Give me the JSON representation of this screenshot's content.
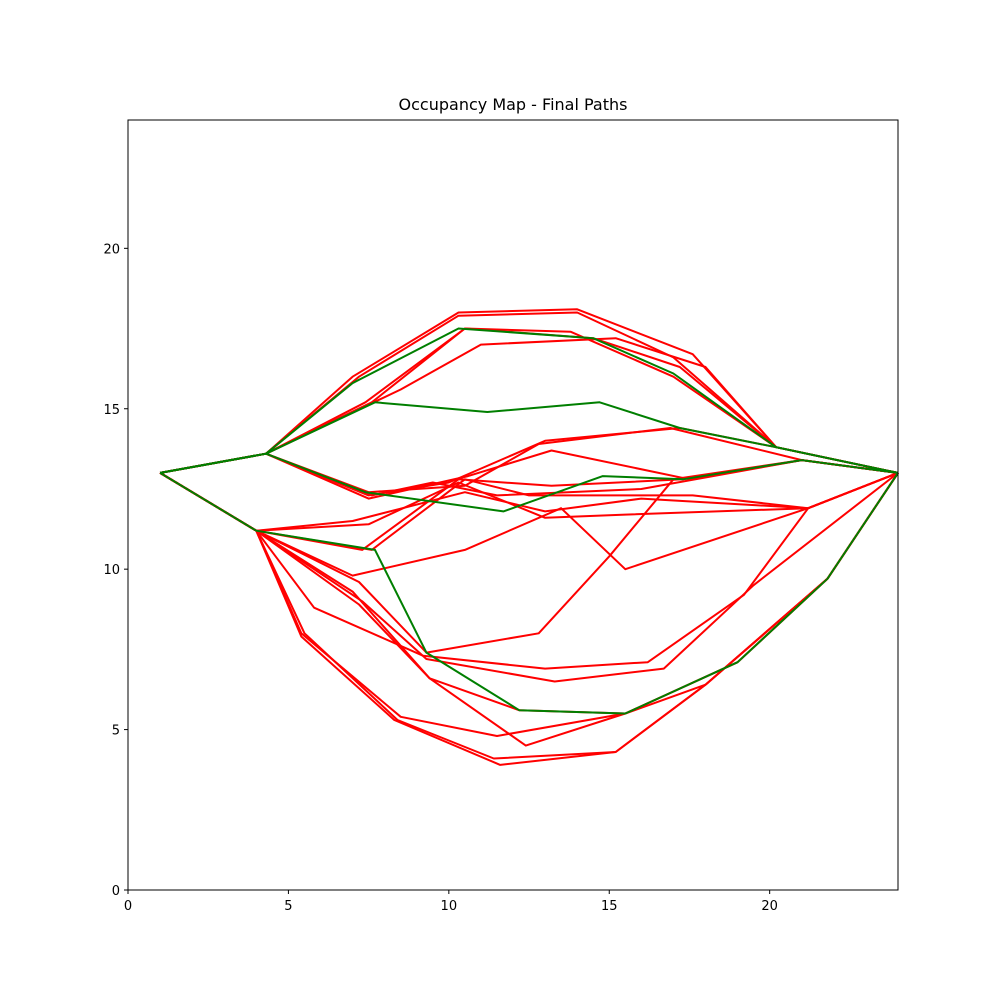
{
  "chart_data": {
    "type": "line",
    "title": "Occupancy Map - Final Paths",
    "xlabel": "",
    "ylabel": "",
    "xlim": [
      0,
      24
    ],
    "ylim": [
      0,
      24
    ],
    "x_ticks": [
      0,
      5,
      10,
      15,
      20
    ],
    "y_ticks": [
      0,
      5,
      10,
      15,
      20
    ],
    "grid": false,
    "colors": {
      "red": "#ff0000",
      "green": "#007f00"
    },
    "series": [
      {
        "color": "red",
        "points": [
          [
            1,
            13
          ],
          [
            4.3,
            13.6
          ],
          [
            7,
            16
          ],
          [
            10.3,
            18
          ],
          [
            14,
            18.1
          ],
          [
            17.6,
            16.7
          ],
          [
            20.2,
            13.8
          ],
          [
            24,
            13
          ]
        ]
      },
      {
        "color": "red",
        "points": [
          [
            1,
            13
          ],
          [
            4.3,
            13.6
          ],
          [
            7.2,
            16
          ],
          [
            10.3,
            17.9
          ],
          [
            14,
            18
          ],
          [
            17,
            16.6
          ],
          [
            20.2,
            13.8
          ],
          [
            24,
            13
          ]
        ]
      },
      {
        "color": "red",
        "points": [
          [
            1,
            13
          ],
          [
            4.3,
            13.6
          ],
          [
            7.4,
            15.2
          ],
          [
            10.5,
            17.5
          ],
          [
            14.5,
            17.2
          ],
          [
            17.2,
            16.3
          ],
          [
            20.2,
            13.8
          ],
          [
            24,
            13
          ]
        ]
      },
      {
        "color": "red",
        "points": [
          [
            1,
            13
          ],
          [
            4.3,
            13.6
          ],
          [
            8.5,
            15.6
          ],
          [
            11,
            17
          ],
          [
            15.2,
            17.2
          ],
          [
            18,
            16.3
          ],
          [
            20.2,
            13.8
          ],
          [
            24,
            13
          ]
        ]
      },
      {
        "color": "red",
        "points": [
          [
            1,
            13
          ],
          [
            4.3,
            13.6
          ],
          [
            7.6,
            15.2
          ],
          [
            10.5,
            17.5
          ],
          [
            13.8,
            17.4
          ],
          [
            17,
            16
          ],
          [
            20.2,
            13.8
          ],
          [
            24,
            13
          ]
        ]
      },
      {
        "color": "red",
        "points": [
          [
            1,
            13
          ],
          [
            4.3,
            13.6
          ],
          [
            7.5,
            12.3
          ],
          [
            10,
            12.7
          ],
          [
            13,
            14
          ],
          [
            17.2,
            14.4
          ],
          [
            20.2,
            13.8
          ],
          [
            24,
            13
          ]
        ]
      },
      {
        "color": "red",
        "points": [
          [
            1,
            13
          ],
          [
            4.3,
            13.6
          ],
          [
            7.5,
            12.4
          ],
          [
            10.5,
            12.6
          ],
          [
            12.8,
            13.9
          ],
          [
            16.9,
            14.4
          ],
          [
            21,
            13.4
          ],
          [
            24,
            13
          ]
        ]
      },
      {
        "color": "red",
        "points": [
          [
            1,
            13
          ],
          [
            4.3,
            13.6
          ],
          [
            7.5,
            12.2
          ],
          [
            10.6,
            12.9
          ],
          [
            13.2,
            13.7
          ],
          [
            17.5,
            12.8
          ],
          [
            21,
            13.4
          ],
          [
            24,
            13
          ]
        ]
      },
      {
        "color": "red",
        "points": [
          [
            1,
            13
          ],
          [
            4.3,
            13.6
          ],
          [
            7.6,
            12.3
          ],
          [
            9.5,
            12.7
          ],
          [
            11.5,
            12.3
          ],
          [
            16,
            12.5
          ],
          [
            21,
            13.4
          ],
          [
            24,
            13
          ]
        ]
      },
      {
        "color": "red",
        "points": [
          [
            1,
            13
          ],
          [
            4,
            11.2
          ],
          [
            7.5,
            11.4
          ],
          [
            10.3,
            12.7
          ],
          [
            13,
            11.6
          ],
          [
            15.5,
            11.7
          ],
          [
            21.2,
            11.9
          ],
          [
            24,
            13
          ]
        ]
      },
      {
        "color": "red",
        "points": [
          [
            1,
            13
          ],
          [
            4,
            11.2
          ],
          [
            7,
            11.5
          ],
          [
            10.5,
            12.4
          ],
          [
            13,
            11.8
          ],
          [
            16,
            12.2
          ],
          [
            21.2,
            11.9
          ],
          [
            24,
            13
          ]
        ]
      },
      {
        "color": "red",
        "points": [
          [
            1,
            13
          ],
          [
            4,
            11.2
          ],
          [
            7.3,
            10.6
          ],
          [
            10.3,
            12.8
          ],
          [
            13.2,
            12.6
          ],
          [
            17.3,
            12.8
          ],
          [
            21,
            13.4
          ],
          [
            24,
            13
          ]
        ]
      },
      {
        "color": "red",
        "points": [
          [
            1,
            13
          ],
          [
            4,
            11.2
          ],
          [
            7.6,
            10.6
          ],
          [
            10.5,
            12.8
          ],
          [
            12.5,
            12.3
          ],
          [
            17.6,
            12.3
          ],
          [
            21.2,
            11.9
          ],
          [
            24,
            13
          ]
        ]
      },
      {
        "color": "red",
        "points": [
          [
            1,
            13
          ],
          [
            4,
            11.2
          ],
          [
            7,
            9.8
          ],
          [
            10.5,
            10.6
          ],
          [
            13.5,
            11.9
          ],
          [
            15.5,
            10
          ],
          [
            21.2,
            11.9
          ],
          [
            24,
            13
          ]
        ]
      },
      {
        "color": "red",
        "points": [
          [
            1,
            13
          ],
          [
            4,
            11.2
          ],
          [
            7.2,
            9.6
          ],
          [
            9.3,
            7.4
          ],
          [
            12.8,
            8
          ],
          [
            15,
            10.4
          ],
          [
            17,
            12.8
          ],
          [
            21,
            13.4
          ],
          [
            24,
            13
          ]
        ]
      },
      {
        "color": "red",
        "points": [
          [
            1,
            13
          ],
          [
            4,
            11.2
          ],
          [
            5.8,
            8.8
          ],
          [
            9.2,
            7.3
          ],
          [
            13,
            6.9
          ],
          [
            16.2,
            7.1
          ],
          [
            19.2,
            9.2
          ],
          [
            21.2,
            11.9
          ],
          [
            24,
            13
          ]
        ]
      },
      {
        "color": "red",
        "points": [
          [
            1,
            13
          ],
          [
            4,
            11.2
          ],
          [
            7.2,
            8.9
          ],
          [
            9.4,
            6.6
          ],
          [
            12.2,
            5.6
          ],
          [
            15.5,
            5.5
          ],
          [
            19,
            7.1
          ],
          [
            21.8,
            9.7
          ],
          [
            24,
            13
          ]
        ]
      },
      {
        "color": "red",
        "points": [
          [
            1,
            13
          ],
          [
            4,
            11.2
          ],
          [
            5.4,
            8
          ],
          [
            8.5,
            5.4
          ],
          [
            11.5,
            4.8
          ],
          [
            15.5,
            5.5
          ],
          [
            18,
            6.4
          ],
          [
            21.8,
            9.7
          ],
          [
            24,
            13
          ]
        ]
      },
      {
        "color": "red",
        "points": [
          [
            1,
            13
          ],
          [
            4,
            11.2
          ],
          [
            5.4,
            7.9
          ],
          [
            8.3,
            5.3
          ],
          [
            11.6,
            3.9
          ],
          [
            15.2,
            4.3
          ],
          [
            18,
            6.4
          ],
          [
            21.8,
            9.7
          ],
          [
            24,
            13
          ]
        ]
      },
      {
        "color": "red",
        "points": [
          [
            1,
            13
          ],
          [
            4,
            11.2
          ],
          [
            5.5,
            8
          ],
          [
            8.4,
            5.3
          ],
          [
            11.4,
            4.1
          ],
          [
            15.2,
            4.3
          ],
          [
            18,
            6.4
          ],
          [
            21.8,
            9.7
          ],
          [
            24,
            13
          ]
        ]
      },
      {
        "color": "red",
        "points": [
          [
            1,
            13
          ],
          [
            4,
            11.2
          ],
          [
            7.3,
            9
          ],
          [
            9.3,
            7.2
          ],
          [
            13.3,
            6.5
          ],
          [
            16.7,
            6.9
          ],
          [
            19.5,
            9.5
          ],
          [
            24,
            13
          ]
        ]
      },
      {
        "color": "red",
        "points": [
          [
            1,
            13
          ],
          [
            4,
            11.2
          ],
          [
            7,
            9.3
          ],
          [
            9.4,
            6.6
          ],
          [
            12.4,
            4.5
          ],
          [
            15.5,
            5.5
          ],
          [
            19,
            7.1
          ],
          [
            21.8,
            9.7
          ],
          [
            24,
            13
          ]
        ]
      },
      {
        "color": "green",
        "points": [
          [
            1,
            13
          ],
          [
            4.3,
            13.6
          ],
          [
            7,
            15.8
          ],
          [
            10.3,
            17.5
          ],
          [
            14.5,
            17.2
          ],
          [
            17,
            16.1
          ],
          [
            20.2,
            13.8
          ],
          [
            24,
            13
          ]
        ]
      },
      {
        "color": "green",
        "points": [
          [
            1,
            13
          ],
          [
            4.3,
            13.6
          ],
          [
            7.7,
            15.2
          ],
          [
            11.2,
            14.9
          ],
          [
            14.7,
            15.2
          ],
          [
            17.2,
            14.4
          ],
          [
            20.2,
            13.8
          ],
          [
            24,
            13
          ]
        ]
      },
      {
        "color": "green",
        "points": [
          [
            1,
            13
          ],
          [
            4.3,
            13.6
          ],
          [
            7.4,
            12.4
          ],
          [
            11.7,
            11.8
          ],
          [
            14.8,
            12.9
          ],
          [
            17.3,
            12.8
          ],
          [
            21,
            13.4
          ],
          [
            24,
            13
          ]
        ]
      },
      {
        "color": "green",
        "points": [
          [
            1,
            13
          ],
          [
            4,
            11.2
          ],
          [
            7.7,
            10.6
          ],
          [
            9.3,
            7.4
          ],
          [
            12.2,
            5.6
          ],
          [
            15.5,
            5.5
          ],
          [
            19,
            7.1
          ],
          [
            21.8,
            9.7
          ],
          [
            24,
            13
          ]
        ]
      }
    ]
  }
}
